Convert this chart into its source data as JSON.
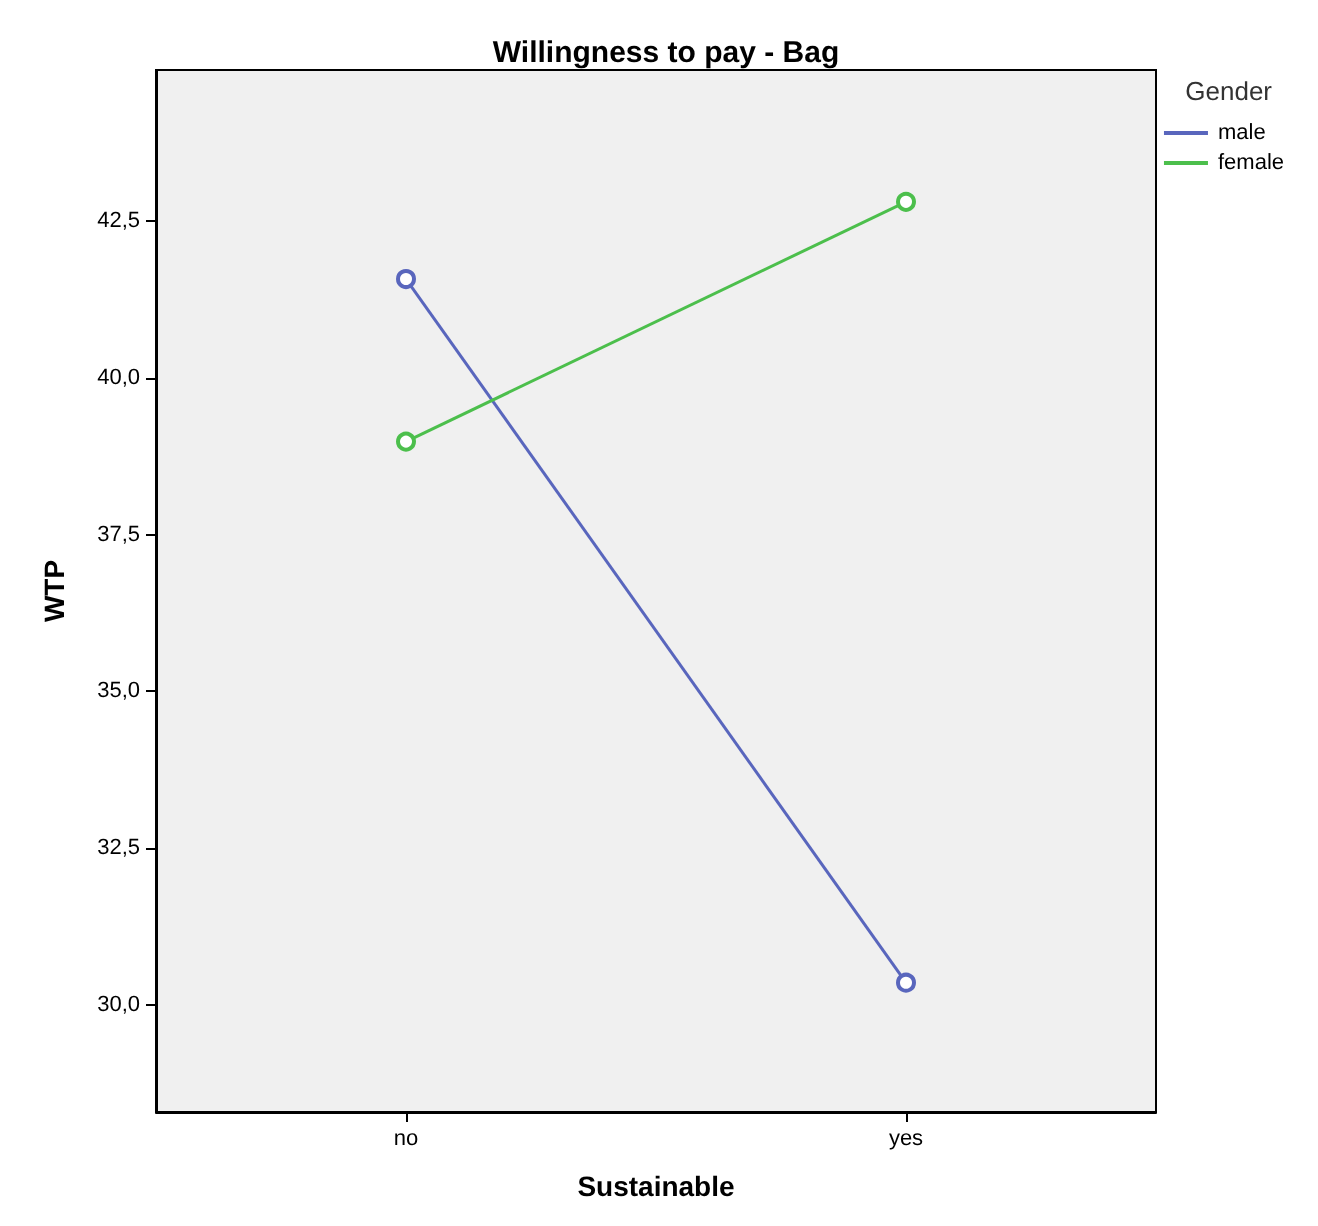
{
  "chart_data": {
    "type": "line",
    "title": "Willingness to pay - Bag",
    "xlabel": "Sustainable",
    "ylabel": "WTP",
    "legend_title": "Gender",
    "categories": [
      "no",
      "yes"
    ],
    "series": [
      {
        "name": "male",
        "color": "#5966bd",
        "values": [
          41.57,
          30.36
        ]
      },
      {
        "name": "female",
        "color": "#4cbf4c",
        "values": [
          38.98,
          42.8
        ]
      }
    ],
    "ylim": [
      28.3,
      44.9
    ],
    "yticks": [
      {
        "value": 30,
        "label": "30,0"
      },
      {
        "value": 32.5,
        "label": "32,5"
      },
      {
        "value": 35,
        "label": "35,0"
      },
      {
        "value": 37.5,
        "label": "37,5"
      },
      {
        "value": 40,
        "label": "40,0"
      },
      {
        "value": 42.5,
        "label": "42,5"
      }
    ],
    "grid": false,
    "legend": "top right",
    "marker": "circle",
    "line_style": "solid"
  }
}
